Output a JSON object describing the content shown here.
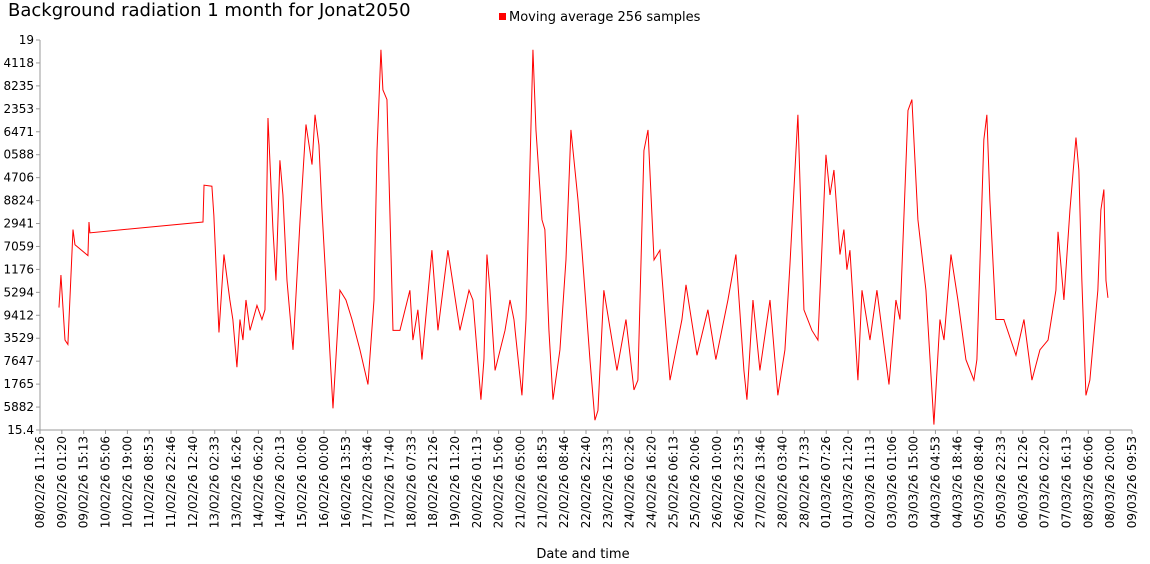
{
  "chart_data": {
    "type": "line",
    "title": "Background radiation 1 month for Jonat2050",
    "x_label": "Date and time",
    "xlim": [
      "08/02/26 11:26",
      "09/03/26 09:53"
    ],
    "xticks": [
      "08/02/26 11:26",
      "09/02/26 01:20",
      "09/02/26 15:13",
      "10/02/26 05:06",
      "10/02/26 19:00",
      "11/02/26 08:53",
      "11/02/26 22:46",
      "12/02/26 12:40",
      "13/02/26 02:33",
      "13/02/26 16:26",
      "14/02/26 06:20",
      "14/02/26 20:13",
      "15/02/26 10:06",
      "16/02/26 00:00",
      "16/02/26 13:53",
      "17/02/26 03:46",
      "17/02/26 17:40",
      "18/02/26 07:33",
      "18/02/26 21:26",
      "19/02/26 11:20",
      "20/02/26 01:13",
      "20/02/26 15:06",
      "21/02/26 05:00",
      "21/02/26 18:53",
      "22/02/26 08:46",
      "22/02/26 22:40",
      "23/02/26 12:33",
      "24/02/26 02:26",
      "24/02/26 16:20",
      "25/02/26 06:13",
      "25/02/26 20:06",
      "26/02/26 10:00",
      "26/02/26 23:53",
      "27/02/26 13:46",
      "28/02/26 03:40",
      "28/02/26 17:33",
      "01/03/26 07:26",
      "01/03/26 21:20",
      "02/03/26 11:13",
      "03/03/26 01:06",
      "03/03/26 15:00",
      "04/03/26 04:53",
      "04/03/26 18:46",
      "05/03/26 08:40",
      "05/03/26 22:33",
      "06/03/26 12:26",
      "07/03/26 02:20",
      "07/03/26 16:13",
      "08/03/26 06:06",
      "08/03/26 20:00",
      "09/03/26 09:53"
    ],
    "ylim": [
      15.4,
      19
    ],
    "yticks": [
      15.4,
      {
        "value": 15.611764705882,
        "label": "5882"
      },
      {
        "value": 15.823529411765,
        "label": "1765"
      },
      {
        "value": 16.035294117647,
        "label": "7647"
      },
      {
        "value": 16.247058823529,
        "label": "3529"
      },
      {
        "value": 16.458823529412,
        "label": "9412"
      },
      {
        "value": 16.670588235294,
        "label": "5294"
      },
      {
        "value": 16.882352941176,
        "label": "1176"
      },
      {
        "value": 17.094117647059,
        "label": "7059"
      },
      {
        "value": 17.305882352941,
        "label": "2941"
      },
      {
        "value": 17.517647058824,
        "label": "8824"
      },
      {
        "value": 17.729411764706,
        "label": "4706"
      },
      {
        "value": 17.941176470588,
        "label": "0588"
      },
      {
        "value": 18.152941176471,
        "label": "6471"
      },
      {
        "value": 18.364705882353,
        "label": "2353"
      },
      {
        "value": 18.576470588235,
        "label": "8235"
      },
      {
        "value": 18.788235294118,
        "label": "4118"
      },
      19
    ],
    "legend_position": "top",
    "x": [
      "08/02/26 23:30",
      "09/02/26 00:45",
      "09/02/26 03:20",
      "09/02/26 05:10",
      "09/02/26 08:25",
      "09/02/26 09:40",
      "09/02/26 17:55",
      "09/02/26 18:35",
      "09/02/26 19:10",
      "12/02/26 19:05",
      "12/02/26 19:45",
      "13/02/26 00:45",
      "13/02/26 02:00",
      "13/02/26 05:15",
      "13/02/26 08:25",
      "13/02/26 12:10",
      "13/02/26 14:05",
      "13/02/26 16:40",
      "13/02/26 18:35",
      "13/02/26 20:30",
      "13/02/26 22:25",
      "14/02/26 01:00",
      "14/02/26 05:25",
      "14/02/26 08:35",
      "14/02/26 10:30",
      "14/02/26 12:25",
      "14/02/26 15:35",
      "14/02/26 17:30",
      "14/02/26 20:00",
      "14/02/26 21:55",
      "15/02/26 00:30",
      "15/02/26 04:20",
      "15/02/26 08:50",
      "15/02/26 12:35",
      "15/02/26 16:25",
      "15/02/26 18:20",
      "15/02/26 20:50",
      "15/02/26 22:45",
      "16/02/26 01:15",
      "16/02/26 05:45",
      "16/02/26 10:10",
      "16/02/26 14:00",
      "16/02/26 17:50",
      "16/02/26 22:55",
      "17/02/26 04:00",
      "17/02/26 07:50",
      "17/02/26 09:45",
      "17/02/26 12:15",
      "17/02/26 13:30",
      "17/02/26 16:05",
      "17/02/26 19:55",
      "18/02/26 00:20",
      "18/02/26 06:40",
      "18/02/26 08:35",
      "18/02/26 11:45",
      "18/02/26 14:20",
      "18/02/26 20:40",
      "19/02/26 00:30",
      "19/02/26 06:50",
      "19/02/26 14:30",
      "19/02/26 20:15",
      "19/02/26 22:45",
      "20/02/26 03:50",
      "20/02/26 05:45",
      "20/02/26 07:40",
      "20/02/26 09:35",
      "20/02/26 12:50",
      "20/02/26 19:10",
      "20/02/26 22:20",
      "21/02/26 00:50",
      "21/02/26 05:55",
      "21/02/26 08:30",
      "21/02/26 12:55",
      "21/02/26 14:50",
      "21/02/26 18:40",
      "21/02/26 20:30",
      "21/02/26 23:05",
      "22/02/26 01:40",
      "22/02/26 06:05",
      "22/02/26 09:55",
      "22/02/26 13:05",
      "22/02/26 17:35",
      "22/02/26 20:05",
      "23/02/26 01:10",
      "23/02/26 04:20",
      "23/02/26 06:15",
      "23/02/26 10:00",
      "23/02/26 15:10",
      "23/02/26 18:20",
      "24/02/26 00:05",
      "24/02/26 05:10",
      "24/02/26 07:40",
      "24/02/26 11:30",
      "24/02/26 14:05",
      "24/02/26 17:55",
      "24/02/26 21:40",
      "25/02/26 04:05",
      "25/02/26 11:40",
      "25/02/26 14:15",
      "25/02/26 21:15",
      "26/02/26 04:10",
      "26/02/26 09:15",
      "26/02/26 16:55",
      "26/02/26 22:00",
      "27/02/26 03:05",
      "27/02/26 05:00",
      "27/02/26 08:50",
      "27/02/26 13:15",
      "27/02/26 19:40",
      "28/02/26 00:40",
      "28/02/26 05:10",
      "28/02/26 08:20",
      "28/02/26 13:25",
      "28/02/26 17:15",
      "28/02/26 22:20",
      "01/03/26 02:10",
      "01/03/26 07:15",
      "01/03/26 09:50",
      "01/03/26 12:20",
      "01/03/26 16:10",
      "01/03/26 18:40",
      "01/03/26 20:35",
      "01/03/26 22:30",
      "02/03/26 03:35",
      "02/03/26 06:10",
      "02/03/26 11:15",
      "02/03/26 15:40",
      "02/03/26 23:20",
      "03/03/26 03:45",
      "03/03/26 06:20",
      "03/03/26 11:25",
      "03/03/26 13:55",
      "03/03/26 17:45",
      "03/03/26 22:50",
      "04/03/26 03:55",
      "04/03/26 07:45",
      "04/03/26 10:20",
      "04/03/26 14:45",
      "04/03/26 19:10",
      "05/03/26 00:15",
      "05/03/26 05:20",
      "05/03/26 07:15",
      "05/03/26 11:40",
      "05/03/26 13:35",
      "05/03/26 15:30",
      "05/03/26 19:20",
      "06/03/26 00:25",
      "06/03/26 08:05",
      "06/03/26 13:10",
      "06/03/26 18:15",
      "06/03/26 23:20",
      "07/03/26 04:30",
      "07/03/26 09:30",
      "07/03/26 10:50",
      "07/03/26 14:35",
      "07/03/26 18:25",
      "07/03/26 22:15",
      "08/03/26 00:05",
      "08/03/26 02:00",
      "08/03/26 04:35",
      "08/03/26 07:05",
      "08/03/26 12:10",
      "08/03/26 14:05",
      "08/03/26 16:00",
      "08/03/26 17:20",
      "08/03/26 18:35"
    ],
    "series": [
      {
        "name": "Moving average 256 samples",
        "color": "#ff0000",
        "values": [
          16.53,
          16.83,
          16.23,
          16.19,
          17.25,
          17.11,
          17.01,
          17.32,
          17.22,
          17.32,
          17.66,
          17.65,
          17.38,
          16.3,
          17.02,
          16.6,
          16.42,
          15.98,
          16.42,
          16.23,
          16.6,
          16.32,
          16.55,
          16.42,
          16.51,
          18.28,
          17.25,
          16.78,
          17.89,
          17.57,
          16.78,
          16.14,
          17.34,
          18.22,
          17.85,
          18.31,
          18.03,
          17.43,
          16.78,
          15.6,
          16.69,
          16.6,
          16.42,
          16.14,
          15.82,
          16.6,
          17.98,
          18.91,
          18.54,
          18.45,
          16.32,
          16.32,
          16.69,
          16.23,
          16.51,
          16.05,
          17.06,
          16.32,
          17.06,
          16.32,
          16.69,
          16.6,
          15.68,
          16.05,
          17.02,
          16.69,
          15.95,
          16.32,
          16.6,
          16.42,
          15.72,
          16.42,
          18.91,
          18.17,
          17.34,
          17.25,
          16.32,
          15.68,
          16.14,
          16.97,
          18.17,
          17.52,
          17.06,
          16.05,
          15.49,
          15.58,
          16.69,
          16.23,
          15.95,
          16.42,
          15.77,
          15.86,
          17.98,
          18.17,
          16.97,
          17.06,
          15.86,
          16.42,
          16.74,
          16.09,
          16.51,
          16.05,
          16.6,
          17.02,
          15.95,
          15.68,
          16.6,
          15.95,
          16.6,
          15.72,
          16.14,
          16.92,
          18.31,
          16.51,
          16.32,
          16.23,
          17.94,
          17.57,
          17.8,
          17.02,
          17.25,
          16.88,
          17.06,
          15.86,
          16.69,
          16.23,
          16.69,
          15.82,
          16.6,
          16.42,
          18.35,
          18.45,
          17.34,
          16.69,
          15.45,
          16.42,
          16.23,
          17.02,
          16.6,
          16.05,
          15.86,
          16.05,
          18.08,
          18.31,
          17.52,
          16.42,
          16.42,
          16.09,
          16.42,
          15.86,
          16.14,
          16.23,
          16.69,
          17.23,
          16.6,
          17.43,
          18.1,
          17.8,
          16.78,
          15.72,
          15.86,
          16.69,
          17.43,
          17.62,
          16.78,
          16.62
        ]
      }
    ]
  }
}
